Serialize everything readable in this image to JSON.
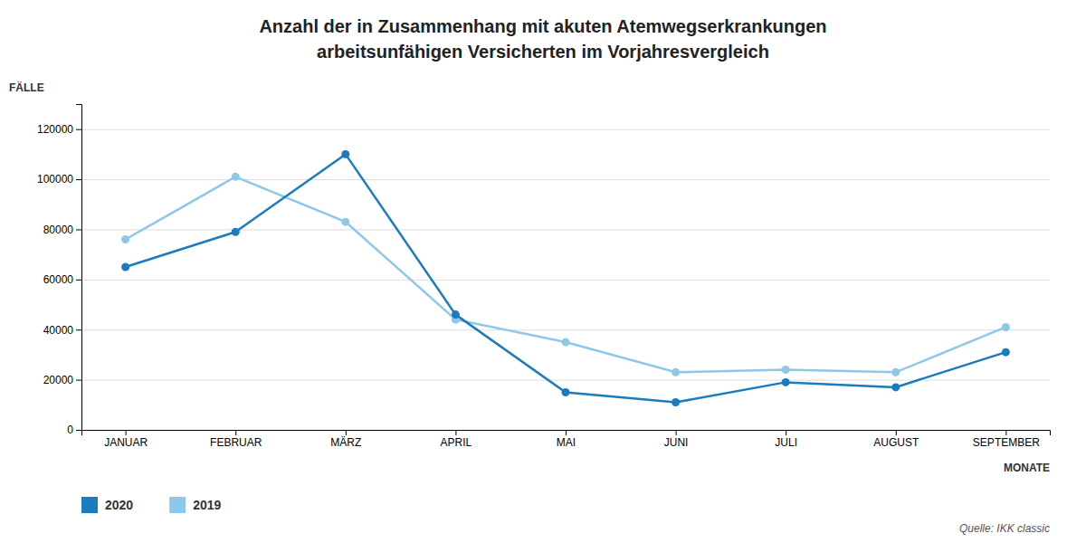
{
  "chart_data": {
    "type": "line",
    "title": "Anzahl der in Zusammenhang mit akuten Atemwegserkrankungen",
    "subtitle": "arbeitsunfähigen Versicherten im Vorjahresvergleich",
    "x_label": "MONATE",
    "y_label": "FÄLLE",
    "categories": [
      "JANUAR",
      "FEBRUAR",
      "MÄRZ",
      "APRIL",
      "MAI",
      "JUNI",
      "JULI",
      "AUGUST",
      "SEPTEMBER"
    ],
    "series": [
      {
        "name": "2020",
        "color": "#1a7bbf",
        "values": [
          65000,
          79000,
          110000,
          46000,
          15000,
          11000,
          19000,
          17000,
          31000
        ]
      },
      {
        "name": "2019",
        "color": "#8ec8e8",
        "values": [
          76000,
          101000,
          83000,
          44000,
          35000,
          23000,
          24000,
          23000,
          41000
        ]
      }
    ],
    "ylim": [
      0,
      130000
    ],
    "yticks": [
      0,
      20000,
      40000,
      60000,
      80000,
      100000,
      120000
    ],
    "grid": true,
    "legend": "bottom",
    "marker": "circle",
    "annotations": [
      "Quelle: IKK classic"
    ]
  }
}
